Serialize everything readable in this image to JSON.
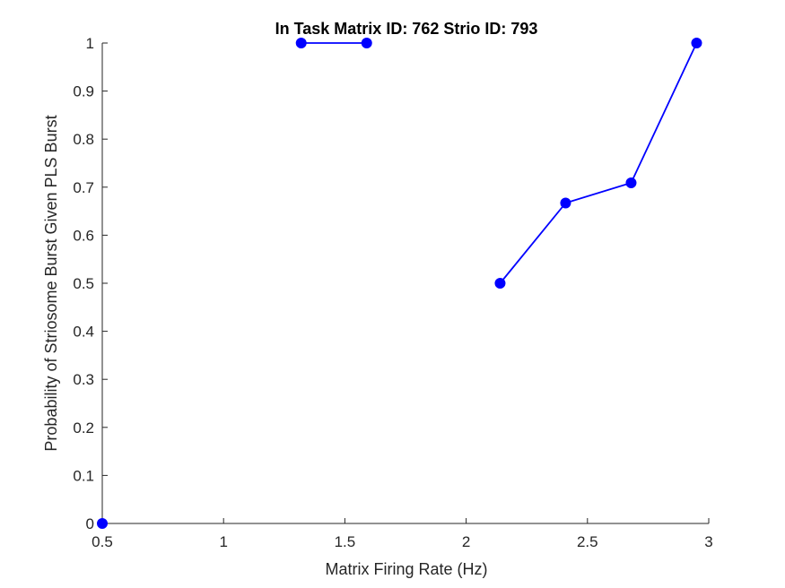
{
  "chart_data": {
    "type": "line",
    "title": "In Task Matrix ID: 762 Strio ID: 793",
    "xlabel": "Matrix Firing Rate (Hz)",
    "ylabel": "Probability of Striosome Burst Given PLS Burst",
    "xlim": [
      0.5,
      3
    ],
    "ylim": [
      0,
      1
    ],
    "xticks": [
      0.5,
      1,
      1.5,
      2,
      2.5,
      3
    ],
    "xtick_labels": [
      "0.5",
      "1",
      "1.5",
      "2",
      "2.5",
      "3"
    ],
    "yticks": [
      0,
      0.1,
      0.2,
      0.3,
      0.4,
      0.5,
      0.6,
      0.7,
      0.8,
      0.9,
      1
    ],
    "ytick_labels": [
      "0",
      "0.1",
      "0.2",
      "0.3",
      "0.4",
      "0.5",
      "0.6",
      "0.7",
      "0.8",
      "0.9",
      "1"
    ],
    "grid": false,
    "color": "#0000ff",
    "segments": [
      [
        {
          "x": 0.5,
          "y": 0
        }
      ],
      [
        {
          "x": 1.32,
          "y": 1
        },
        {
          "x": 1.59,
          "y": 1
        }
      ],
      [
        {
          "x": 2.14,
          "y": 0.5
        },
        {
          "x": 2.41,
          "y": 0.667
        },
        {
          "x": 2.68,
          "y": 0.709
        },
        {
          "x": 2.95,
          "y": 1
        }
      ]
    ]
  }
}
